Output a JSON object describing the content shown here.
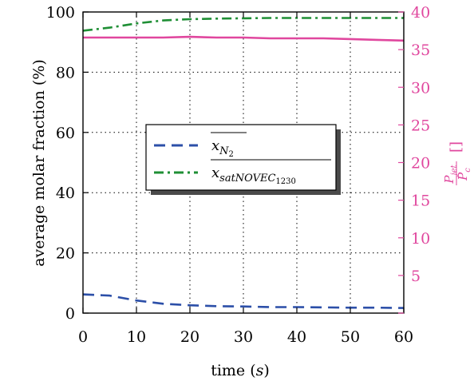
{
  "chart_data": {
    "type": "line",
    "xlabel": "time (s)",
    "xlabel_parts": {
      "before": "time (",
      "var": "s",
      "after": ")"
    },
    "ylabel_left": "average molar fraction (%)",
    "ylabel_right_parts": {
      "num": "P",
      "num_sub": "jet",
      "den": "P",
      "den_sub": "c",
      "unit": "[]"
    },
    "xlim": [
      0,
      60
    ],
    "ylim_left": [
      0,
      100
    ],
    "ylim_right": [
      0,
      40
    ],
    "xticks": [
      0,
      10,
      20,
      30,
      40,
      50,
      60
    ],
    "yticks_left": [
      0,
      20,
      40,
      60,
      80,
      100
    ],
    "yticks_right": [
      0,
      5,
      10,
      15,
      20,
      25,
      30,
      35,
      40
    ],
    "yticks_right_labels": [
      "",
      "5",
      "10",
      "15",
      "20",
      "25",
      "30",
      "35",
      "40"
    ],
    "grid": true,
    "legend_position": "center-left",
    "series": [
      {
        "name": "x_N2",
        "legend_label": {
          "base": "x",
          "sub": "N",
          "subsub": "2"
        },
        "axis": "left",
        "color": "#2c4fa8",
        "style": "dashed",
        "x": [
          0,
          5,
          10,
          15,
          20,
          25,
          30,
          35,
          40,
          45,
          50,
          55,
          60
        ],
        "y": [
          6.2,
          5.8,
          4.2,
          3.1,
          2.6,
          2.3,
          2.2,
          2.0,
          2.0,
          1.9,
          1.8,
          1.8,
          1.7
        ]
      },
      {
        "name": "x_satNOVEC1230",
        "legend_label": {
          "base": "x",
          "sub": "satNOVEC",
          "subsub": "1230"
        },
        "axis": "left",
        "color": "#1f8f35",
        "style": "dashdot",
        "x": [
          0,
          5,
          10,
          15,
          20,
          25,
          30,
          35,
          40,
          45,
          50,
          55,
          60
        ],
        "y": [
          93.8,
          94.8,
          96.2,
          97.2,
          97.6,
          97.8,
          97.9,
          98.0,
          98.0,
          98.0,
          98.0,
          98.0,
          98.0
        ]
      },
      {
        "name": "P_jet/P_c",
        "axis": "right",
        "color": "#e0479e",
        "style": "solid",
        "x": [
          0,
          5,
          10,
          15,
          20,
          25,
          30,
          35,
          40,
          45,
          50,
          55,
          60
        ],
        "y": [
          36.6,
          36.6,
          36.6,
          36.6,
          36.7,
          36.6,
          36.6,
          36.5,
          36.5,
          36.5,
          36.4,
          36.3,
          36.2
        ]
      }
    ]
  }
}
